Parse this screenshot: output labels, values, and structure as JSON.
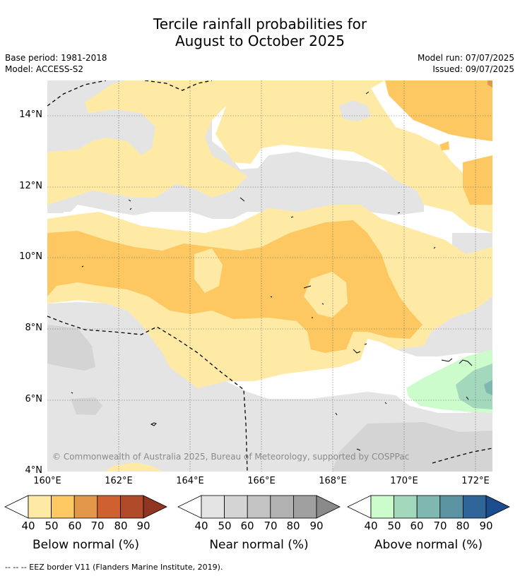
{
  "title_line1": "Tercile rainfall probabilities for",
  "title_line2": "August to October 2025",
  "base_period": "Base period: 1981-2018",
  "model": "Model: ACCESS-S2",
  "model_run": "Model run: 07/07/2025",
  "issued": "Issued: 09/07/2025",
  "copyright": "© Commonwealth of Australia 2025, Bureau of Meteorology, supported by COSPPac",
  "lat_labels": [
    "14°N",
    "12°N",
    "10°N",
    "8°N",
    "6°N",
    "4°N"
  ],
  "lon_labels": [
    "160°E",
    "162°E",
    "164°E",
    "166°E",
    "168°E",
    "170°E",
    "172°E"
  ],
  "colorbars": {
    "below": {
      "title": "Below normal (%)",
      "ticks": [
        "40",
        "50",
        "60",
        "70",
        "80",
        "90"
      ],
      "colors": [
        "#ffeaa5",
        "#fdc861",
        "#e2974a",
        "#cf6130",
        "#b14a28",
        "#913523"
      ]
    },
    "near": {
      "title": "Near normal (%)",
      "ticks": [
        "40",
        "50",
        "60",
        "70",
        "80",
        "90"
      ],
      "colors": [
        "#e4e4e4",
        "#d4d4d4",
        "#c3c3c3",
        "#b1b1b1",
        "#a0a0a0",
        "#8a8a8a"
      ]
    },
    "above": {
      "title": "Above normal (%)",
      "ticks": [
        "40",
        "50",
        "60",
        "70",
        "80",
        "90"
      ],
      "colors": [
        "#ccfccc",
        "#a3d8bd",
        "#7fb8b0",
        "#5c93a3",
        "#2f6599",
        "#1b4d8e"
      ]
    }
  },
  "footnote": "-- -- -- EEZ border V11 (Flanders Marine Institute, 2019)."
}
